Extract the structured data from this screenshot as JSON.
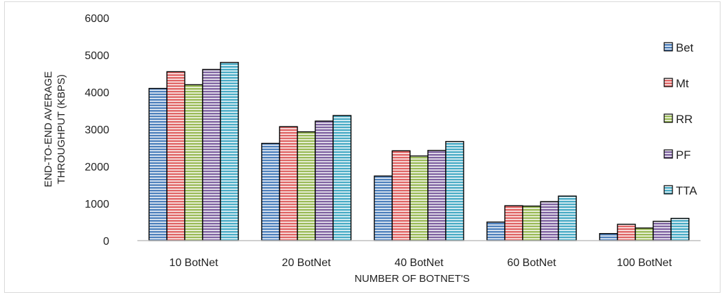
{
  "chart_data": {
    "type": "bar",
    "title": "",
    "xlabel": "NUMBER OF BOTNET'S",
    "ylabel": [
      "END-TO-END AVERAGE",
      "THROUGHPUT (KBPS)"
    ],
    "ylim": [
      0,
      6000
    ],
    "yticks": [
      0,
      1000,
      2000,
      3000,
      4000,
      5000,
      6000
    ],
    "grid": false,
    "legend_position": "right",
    "categories": [
      "10 BotNet",
      "20 BotNet",
      "40 BotNet",
      "60 BotNet",
      "100 BotNet"
    ],
    "series": [
      {
        "name": "Bet",
        "values": [
          4100,
          2620,
          1740,
          500,
          190
        ],
        "color": "#4f81bd",
        "pattern": "horizontal-stripes"
      },
      {
        "name": "Mt",
        "values": [
          4550,
          3070,
          2420,
          940,
          440
        ],
        "color": "#e06666",
        "pattern": "horizontal-stripes"
      },
      {
        "name": "RR",
        "values": [
          4200,
          2930,
          2280,
          930,
          340
        ],
        "color": "#9bbb59",
        "pattern": "horizontal-stripes"
      },
      {
        "name": "PF",
        "values": [
          4610,
          3220,
          2430,
          1050,
          520
        ],
        "color": "#8064a2",
        "pattern": "horizontal-stripes"
      },
      {
        "name": "TTA",
        "values": [
          4800,
          3370,
          2670,
          1200,
          600
        ],
        "color": "#4bacc6",
        "pattern": "horizontal-stripes"
      }
    ]
  }
}
